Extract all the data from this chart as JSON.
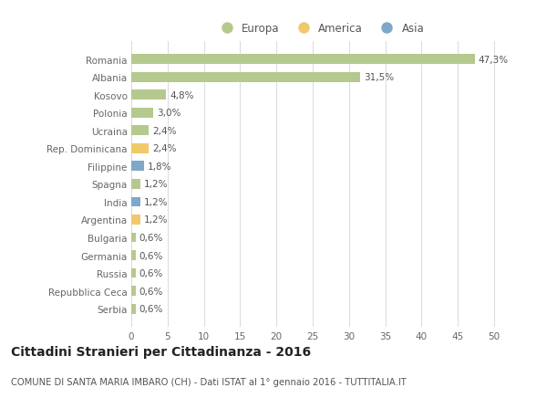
{
  "countries": [
    "Romania",
    "Albania",
    "Kosovo",
    "Polonia",
    "Ucraina",
    "Rep. Dominicana",
    "Filippine",
    "Spagna",
    "India",
    "Argentina",
    "Bulgaria",
    "Germania",
    "Russia",
    "Repubblica Ceca",
    "Serbia"
  ],
  "values": [
    47.3,
    31.5,
    4.8,
    3.0,
    2.4,
    2.4,
    1.8,
    1.2,
    1.2,
    1.2,
    0.6,
    0.6,
    0.6,
    0.6,
    0.6
  ],
  "labels": [
    "47,3%",
    "31,5%",
    "4,8%",
    "3,0%",
    "2,4%",
    "2,4%",
    "1,8%",
    "1,2%",
    "1,2%",
    "1,2%",
    "0,6%",
    "0,6%",
    "0,6%",
    "0,6%",
    "0,6%"
  ],
  "continents": [
    "Europa",
    "Europa",
    "Europa",
    "Europa",
    "Europa",
    "America",
    "Asia",
    "Europa",
    "Asia",
    "America",
    "Europa",
    "Europa",
    "Europa",
    "Europa",
    "Europa"
  ],
  "colors": {
    "Europa": "#b5c98e",
    "America": "#f0c96a",
    "Asia": "#7ea8c9"
  },
  "xlim": [
    0,
    52
  ],
  "xticks": [
    0,
    5,
    10,
    15,
    20,
    25,
    30,
    35,
    40,
    45,
    50
  ],
  "title": "Cittadini Stranieri per Cittadinanza - 2016",
  "subtitle": "COMUNE DI SANTA MARIA IMBARO (CH) - Dati ISTAT al 1° gennaio 2016 - TUTTITALIA.IT",
  "background_color": "#ffffff",
  "grid_color": "#dddddd",
  "bar_height": 0.55,
  "label_fontsize": 7.5,
  "tick_fontsize": 7.5,
  "title_fontsize": 10,
  "subtitle_fontsize": 7.2,
  "legend_labels": [
    "Europa",
    "America",
    "Asia"
  ]
}
